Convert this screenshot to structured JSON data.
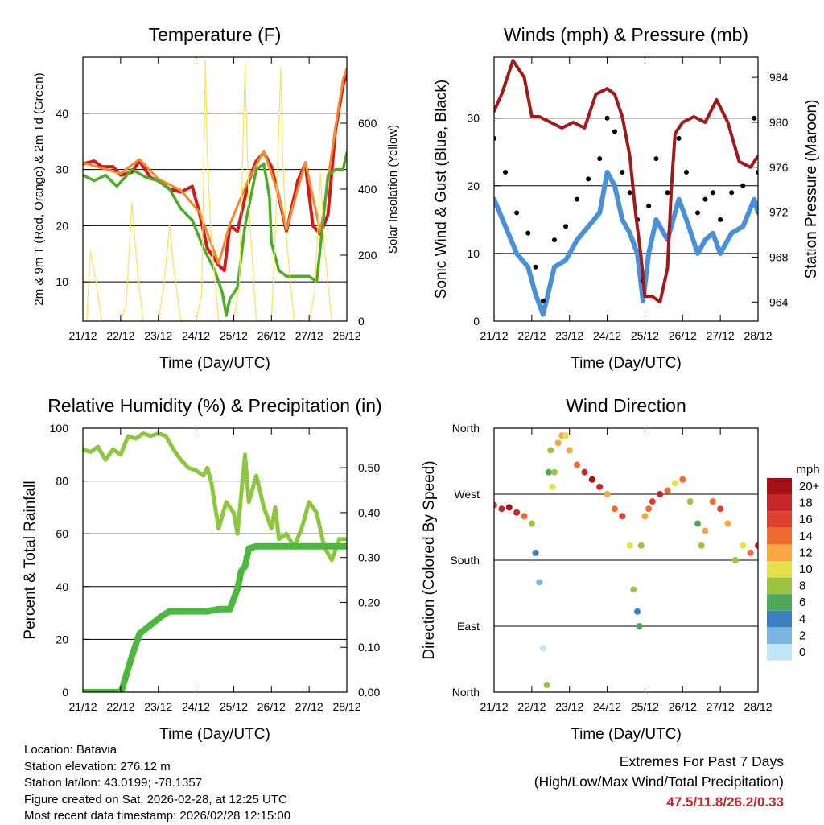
{
  "chart_data": [
    {
      "id": "temp",
      "type": "line",
      "title": "Temperature (F)",
      "xlabel": "Time (Day/UTC)",
      "ylabel": "2m & 9m T (Red, Orange) & 2m Td (Green)",
      "ylabel_right": "Solar Insolation (Yellow)",
      "x_tick_labels": [
        "21/12",
        "22/12",
        "23/12",
        "24/12",
        "25/12",
        "26/12",
        "27/12",
        "28/12"
      ],
      "xlim": [
        0,
        7
      ],
      "ylim": [
        3,
        50
      ],
      "y_ticks": [
        10,
        20,
        30,
        40
      ],
      "ylim_right": [
        0,
        800
      ],
      "y_ticks_right": [
        0,
        200,
        400,
        600
      ],
      "series": [
        {
          "name": "2m T",
          "color": "#d7191c",
          "axis": "left",
          "x": [
            0,
            0.3,
            0.5,
            0.8,
            1.0,
            1.3,
            1.5,
            1.8,
            2.0,
            2.3,
            2.6,
            2.9,
            3.1,
            3.3,
            3.6,
            3.75,
            3.9,
            4.1,
            4.4,
            4.6,
            4.8,
            5.0,
            5.2,
            5.4,
            5.7,
            5.9,
            6.1,
            6.3,
            6.5,
            6.7,
            6.9,
            7.0
          ],
          "values": [
            31,
            31.5,
            30.5,
            30.5,
            29,
            29.5,
            31.5,
            28.5,
            28,
            26.5,
            26,
            27,
            22,
            16,
            13,
            12,
            20,
            19,
            28,
            31.5,
            33,
            30.5,
            25,
            19,
            28,
            31,
            20,
            18.5,
            22,
            37,
            45,
            47
          ]
        },
        {
          "name": "9m T",
          "color": "#f28a2e",
          "axis": "left",
          "x": [
            0,
            1.0,
            1.5,
            2.0,
            2.6,
            3.1,
            3.6,
            3.9,
            4.4,
            4.8,
            5.2,
            5.4,
            5.9,
            6.3,
            6.7,
            6.9,
            7.0
          ],
          "values": [
            31.2,
            29.3,
            31.8,
            28.3,
            26.3,
            22.3,
            13.3,
            20.3,
            28.3,
            33.3,
            25.3,
            19.3,
            31.3,
            18.8,
            37.5,
            46,
            48
          ]
        },
        {
          "name": "2m Td",
          "color": "#4dac26",
          "axis": "left",
          "x": [
            0,
            0.3,
            0.6,
            0.9,
            1.3,
            1.7,
            2.0,
            2.3,
            2.6,
            2.9,
            3.2,
            3.5,
            3.7,
            3.8,
            3.9,
            4.1,
            4.3,
            4.6,
            4.8,
            4.95,
            5.0,
            5.2,
            5.4,
            5.7,
            6.0,
            6.2,
            6.5,
            6.7,
            6.9,
            7.0
          ],
          "values": [
            29,
            28,
            29,
            27,
            30,
            28.5,
            28,
            26.5,
            23,
            21,
            16,
            12,
            8,
            4,
            7,
            9,
            20,
            30,
            31,
            25,
            17,
            12,
            11,
            11,
            11,
            10,
            29,
            30,
            30,
            33
          ]
        },
        {
          "name": "Solar Insolation",
          "color": "#fbe35a",
          "axis": "right",
          "x": [
            0,
            0.1,
            0.2,
            0.35,
            0.5,
            1.0,
            1.15,
            1.3,
            1.45,
            1.6,
            2.0,
            2.15,
            2.3,
            2.4,
            2.6,
            3.0,
            3.15,
            3.25,
            3.3,
            3.4,
            3.6,
            4.0,
            4.15,
            4.3,
            4.4,
            4.6,
            5.0,
            5.1,
            5.25,
            5.3,
            5.4,
            5.6,
            6.0,
            6.15,
            6.3,
            6.4,
            6.6,
            7.0
          ],
          "values": [
            0,
            0,
            210,
            120,
            0,
            0,
            50,
            360,
            150,
            0,
            0,
            110,
            290,
            170,
            0,
            0,
            80,
            790,
            500,
            260,
            0,
            0,
            110,
            780,
            350,
            0,
            0,
            250,
            770,
            500,
            250,
            0,
            0,
            90,
            450,
            230,
            0,
            0
          ]
        }
      ]
    },
    {
      "id": "wind",
      "type": "scatter",
      "title": "Winds (mph) & Pressure (mb)",
      "xlabel": "Time (Day/UTC)",
      "ylabel": "Sonic Wind & Gust (Blue, Black)",
      "ylabel_right": "Station Pressure (Maroon)",
      "x_tick_labels": [
        "21/12",
        "22/12",
        "23/12",
        "24/12",
        "25/12",
        "26/12",
        "27/12",
        "28/12"
      ],
      "xlim": [
        0,
        7
      ],
      "ylim": [
        0,
        39
      ],
      "y_ticks": [
        0,
        10,
        20,
        30
      ],
      "ylim_right": [
        962.3,
        985.8
      ],
      "y_ticks_right": [
        964,
        968,
        972,
        976,
        980,
        984
      ],
      "series": [
        {
          "name": "Sonic Wind",
          "color": "#4a90d9",
          "axis": "left",
          "x": [
            0,
            0.3,
            0.6,
            0.9,
            1.1,
            1.3,
            1.6,
            1.9,
            2.2,
            2.5,
            2.8,
            3.0,
            3.2,
            3.4,
            3.6,
            3.8,
            3.95,
            4.1,
            4.3,
            4.6,
            4.9,
            5.1,
            5.4,
            5.6,
            5.8,
            6.0,
            6.3,
            6.6,
            6.9,
            7.0
          ],
          "values": [
            18,
            14,
            10,
            8,
            4,
            1,
            8,
            9,
            12,
            14,
            16,
            22,
            20,
            15,
            13,
            10,
            3,
            10,
            15,
            12,
            18,
            15,
            10,
            12,
            13,
            10,
            13,
            14,
            18,
            16
          ]
        },
        {
          "name": "Gust",
          "color": "#000000",
          "axis": "left",
          "x": [
            0,
            0.3,
            0.6,
            0.9,
            1.1,
            1.3,
            1.6,
            1.9,
            2.2,
            2.5,
            2.8,
            3.0,
            3.2,
            3.4,
            3.6,
            3.8,
            3.95,
            4.1,
            4.3,
            4.6,
            4.9,
            5.1,
            5.4,
            5.6,
            5.8,
            6.0,
            6.3,
            6.6,
            6.9,
            7.0
          ],
          "values": [
            27,
            22,
            16,
            13,
            8,
            3,
            12,
            14,
            18,
            21,
            24,
            30,
            28,
            22,
            19,
            15,
            6,
            17,
            24,
            19,
            27,
            22,
            16,
            18,
            19,
            15,
            19,
            20,
            30,
            22
          ]
        },
        {
          "name": "Station Pressure",
          "color": "#9e1b1b",
          "axis": "right",
          "x": [
            0,
            0.2,
            0.5,
            0.8,
            1.0,
            1.2,
            1.5,
            1.8,
            2.1,
            2.4,
            2.7,
            3.0,
            3.2,
            3.4,
            3.6,
            3.75,
            3.9,
            4.0,
            4.2,
            4.4,
            4.6,
            4.7,
            4.8,
            5.0,
            5.3,
            5.6,
            5.9,
            6.2,
            6.5,
            6.8,
            7.0
          ],
          "values": [
            981,
            982.5,
            985.5,
            984,
            980.5,
            980.5,
            980,
            979.5,
            980,
            979.5,
            982.5,
            983,
            982.5,
            980.5,
            977,
            972,
            968,
            964.5,
            964.5,
            964,
            967,
            974,
            979,
            980,
            980.5,
            980,
            982,
            980,
            976.5,
            976,
            977
          ]
        }
      ]
    },
    {
      "id": "rh",
      "type": "line",
      "title": "Relative Humidity (%) & Precipitation (in)",
      "xlabel": "Time (Day/UTC)",
      "ylabel": "Percent & Total Rainfall",
      "x_tick_labels": [
        "21/12",
        "22/12",
        "23/12",
        "24/12",
        "25/12",
        "26/12",
        "27/12",
        "28/12"
      ],
      "xlim": [
        0,
        7
      ],
      "ylim": [
        0,
        100
      ],
      "y_ticks": [
        0,
        20,
        40,
        60,
        80,
        100
      ],
      "ylim_right": [
        0,
        0.588
      ],
      "y_ticks_right": [
        "0.00",
        "0.10",
        "0.20",
        "0.30",
        "0.40",
        "0.50"
      ],
      "series": [
        {
          "name": "Relative Humidity",
          "color": "#8dc63f",
          "axis": "left",
          "x": [
            0,
            0.2,
            0.4,
            0.6,
            0.8,
            1.0,
            1.2,
            1.4,
            1.6,
            1.8,
            2.0,
            2.2,
            2.4,
            2.6,
            2.8,
            3.0,
            3.2,
            3.3,
            3.4,
            3.6,
            3.8,
            4.0,
            4.1,
            4.3,
            4.4,
            4.6,
            4.8,
            5.0,
            5.1,
            5.2,
            5.4,
            5.6,
            5.8,
            6.0,
            6.2,
            6.4,
            6.6,
            6.8,
            7.0
          ],
          "values": [
            92,
            91,
            93,
            88,
            92,
            90,
            97,
            96,
            98,
            97,
            98,
            97,
            92,
            88,
            85,
            84,
            82,
            85,
            80,
            62,
            72,
            68,
            60,
            90,
            72,
            82,
            70,
            62,
            70,
            58,
            60,
            55,
            62,
            72,
            68,
            55,
            50,
            58,
            58
          ]
        },
        {
          "name": "Total Precipitation",
          "color": "#4cb83f",
          "axis": "right",
          "x": [
            0,
            0.5,
            1.0,
            1.05,
            1.3,
            1.5,
            1.8,
            2.1,
            2.3,
            2.6,
            3.0,
            3.3,
            3.6,
            3.9,
            4.1,
            4.2,
            4.3,
            4.4,
            4.6,
            5.0,
            5.5,
            6.0,
            6.5,
            7.0
          ],
          "values": [
            0,
            0,
            0,
            0.01,
            0.08,
            0.13,
            0.15,
            0.17,
            0.18,
            0.18,
            0.18,
            0.18,
            0.185,
            0.185,
            0.23,
            0.27,
            0.28,
            0.32,
            0.325,
            0.325,
            0.325,
            0.325,
            0.325,
            0.325
          ]
        }
      ]
    },
    {
      "id": "dir",
      "type": "scatter",
      "title": "Wind Direction",
      "xlabel": "Time (Day/UTC)",
      "ylabel": "Direction (Colored By Speed)",
      "x_tick_labels": [
        "21/12",
        "22/12",
        "23/12",
        "24/12",
        "25/12",
        "26/12",
        "27/12",
        "28/12"
      ],
      "xlim": [
        0,
        7
      ],
      "ylim": [
        0,
        360
      ],
      "y_tick_labels": [
        "North",
        "East",
        "South",
        "West",
        "North"
      ],
      "y_tick_values": [
        0,
        90,
        180,
        270,
        360
      ],
      "points": {
        "x": [
          0,
          0.2,
          0.4,
          0.6,
          0.8,
          1.0,
          1.1,
          1.2,
          1.3,
          1.4,
          1.45,
          1.5,
          1.55,
          1.6,
          1.7,
          1.8,
          1.9,
          2.0,
          2.2,
          2.4,
          2.6,
          2.8,
          3.0,
          3.2,
          3.4,
          3.6,
          3.7,
          3.8,
          3.85,
          3.9,
          4.0,
          4.1,
          4.2,
          4.4,
          4.6,
          4.8,
          5.0,
          5.2,
          5.4,
          5.5,
          5.6,
          5.8,
          6.0,
          6.2,
          6.4,
          6.6,
          6.8,
          7.0
        ],
        "values": [
          255,
          250,
          252,
          245,
          240,
          230,
          190,
          150,
          60,
          10,
          300,
          330,
          280,
          300,
          340,
          350,
          350,
          330,
          310,
          300,
          290,
          280,
          270,
          250,
          240,
          200,
          140,
          110,
          90,
          200,
          240,
          250,
          260,
          270,
          275,
          285,
          290,
          260,
          230,
          200,
          220,
          260,
          250,
          230,
          180,
          200,
          190,
          200
        ],
        "speeds": [
          16,
          18,
          20,
          18,
          14,
          8,
          4,
          2,
          1,
          8,
          6,
          8,
          10,
          8,
          12,
          12,
          10,
          12,
          14,
          18,
          20,
          18,
          12,
          14,
          16,
          10,
          8,
          4,
          6,
          8,
          12,
          14,
          16,
          18,
          14,
          10,
          14,
          8,
          6,
          8,
          12,
          14,
          16,
          12,
          8,
          10,
          14,
          18
        ]
      },
      "legend": {
        "title": "mph",
        "labels": [
          "20+",
          "18",
          "16",
          "14",
          "12",
          "10",
          "8",
          "6",
          "4",
          "2",
          "0"
        ],
        "colors": [
          "#a50f15",
          "#c8262c",
          "#e0402f",
          "#f06b2f",
          "#f9a643",
          "#e3e049",
          "#9ac441",
          "#4fa85a",
          "#3a80bf",
          "#7cb5e4",
          "#c2e4f7"
        ]
      }
    }
  ],
  "station_info": {
    "location": "Location: Batavia",
    "elevation": "Station elevation: 276.12 m",
    "latlon": "Station lat/lon: 43.0199; -78.1357",
    "created": "Figure created on Sat, 2026-02-28, at 12:25 UTC",
    "recent": "Most recent data timestamp: 2026/02/28 12:15:00"
  },
  "extremes": {
    "heading": "Extremes For Past 7 Days",
    "subheading": "(High/Low/Max Wind/Total Precipitation)",
    "values": "47.5/11.8/26.2/0.33",
    "value_color": "#c8262c"
  }
}
